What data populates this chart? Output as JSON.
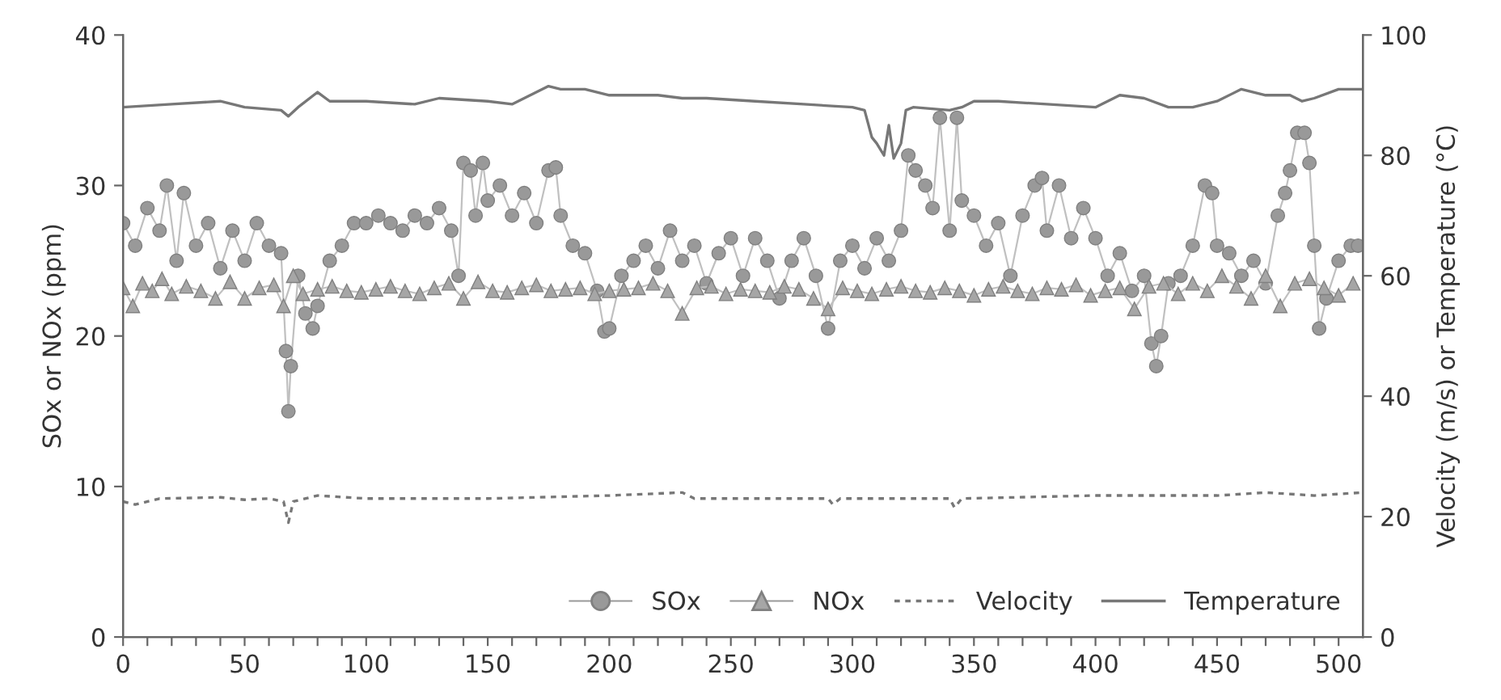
{
  "chart_data": {
    "type": "line",
    "xlim": [
      0,
      510
    ],
    "xticks": [
      0,
      {
        "value": 10,
        "label": null
      },
      {
        "value": 20,
        "label": null
      },
      {
        "value": 30,
        "label": null
      },
      {
        "value": 40,
        "label": null
      },
      50,
      {
        "value": 60,
        "label": null
      },
      {
        "value": 70,
        "label": null
      },
      {
        "value": 80,
        "label": null
      },
      {
        "value": 90,
        "label": null
      },
      100,
      {
        "value": 110,
        "label": null
      },
      {
        "value": 120,
        "label": null
      },
      {
        "value": 130,
        "label": null
      },
      {
        "value": 140,
        "label": null
      },
      150,
      {
        "value": 160,
        "label": null
      },
      {
        "value": 170,
        "label": null
      },
      {
        "value": 180,
        "label": null
      },
      {
        "value": 190,
        "label": null
      },
      200,
      {
        "value": 210,
        "label": null
      },
      {
        "value": 220,
        "label": null
      },
      {
        "value": 230,
        "label": null
      },
      {
        "value": 240,
        "label": null
      },
      250,
      {
        "value": 260,
        "label": null
      },
      {
        "value": 270,
        "label": null
      },
      {
        "value": 280,
        "label": null
      },
      {
        "value": 290,
        "label": null
      },
      300,
      {
        "value": 310,
        "label": null
      },
      {
        "value": 320,
        "label": null
      },
      {
        "value": 330,
        "label": null
      },
      {
        "value": 340,
        "label": null
      },
      350,
      {
        "value": 360,
        "label": null
      },
      {
        "value": 370,
        "label": null
      },
      {
        "value": 380,
        "label": null
      },
      {
        "value": 390,
        "label": null
      },
      400,
      {
        "value": 410,
        "label": null
      },
      {
        "value": 420,
        "label": null
      },
      {
        "value": 430,
        "label": null
      },
      {
        "value": 440,
        "label": null
      },
      450,
      {
        "value": 460,
        "label": null
      },
      {
        "value": 470,
        "label": null
      },
      {
        "value": 480,
        "label": null
      },
      {
        "value": 490,
        "label": null
      },
      500
    ],
    "ylim": [
      0,
      40
    ],
    "yticks": [
      0,
      10,
      20,
      30,
      40
    ],
    "y2lim": [
      0,
      100
    ],
    "y2ticks": [
      0,
      20,
      40,
      60,
      80,
      100
    ],
    "ylabel": "SOx or NOx (ppm)",
    "y2label": "Velocity (m/s) or Temperature (°C)",
    "legend": "bottom right",
    "grid": false,
    "series": [
      {
        "name": "SOx",
        "marker": "circle",
        "line_style": "solid",
        "color": "#999999",
        "x": [
          0,
          5,
          10,
          15,
          18,
          22,
          25,
          30,
          35,
          40,
          45,
          50,
          55,
          60,
          65,
          67,
          68,
          69,
          72,
          75,
          78,
          80,
          85,
          90,
          95,
          100,
          105,
          110,
          115,
          120,
          125,
          130,
          135,
          138,
          140,
          143,
          145,
          148,
          150,
          155,
          160,
          165,
          170,
          175,
          178,
          180,
          185,
          190,
          195,
          198,
          200,
          205,
          210,
          215,
          220,
          225,
          230,
          235,
          240,
          245,
          250,
          255,
          260,
          265,
          270,
          275,
          280,
          285,
          290,
          295,
          300,
          305,
          310,
          315,
          320,
          323,
          326,
          330,
          333,
          336,
          340,
          343,
          345,
          350,
          355,
          360,
          365,
          370,
          375,
          378,
          380,
          385,
          390,
          395,
          400,
          405,
          410,
          415,
          420,
          423,
          425,
          427,
          430,
          435,
          440,
          445,
          448,
          450,
          455,
          460,
          465,
          470,
          475,
          478,
          480,
          483,
          486,
          488,
          490,
          492,
          495,
          500,
          505,
          508
        ],
        "values": [
          27.5,
          26,
          28.5,
          27,
          30,
          25,
          29.5,
          26,
          27.5,
          24.5,
          27,
          25,
          27.5,
          26,
          25.5,
          19,
          15,
          18,
          24,
          21.5,
          20.5,
          22,
          25,
          26,
          27.5,
          27.5,
          28,
          27.5,
          27,
          28,
          27.5,
          28.5,
          27,
          24,
          31.5,
          31,
          28,
          31.5,
          29,
          30,
          28,
          29.5,
          27.5,
          31,
          31.2,
          28,
          26,
          25.5,
          23,
          20.3,
          20.5,
          24,
          25,
          26,
          24.5,
          27,
          25,
          26,
          23.5,
          25.5,
          26.5,
          24,
          26.5,
          25,
          22.5,
          25,
          26.5,
          24,
          20.5,
          25,
          26,
          24.5,
          26.5,
          25,
          27,
          32,
          31,
          30,
          28.5,
          34.5,
          27,
          34.5,
          29,
          28,
          26,
          27.5,
          24,
          28,
          30,
          30.5,
          27,
          30,
          26.5,
          28.5,
          26.5,
          24,
          25.5,
          23,
          24,
          19.5,
          18,
          20,
          23.5,
          24,
          26,
          30,
          29.5,
          26,
          25.5,
          24,
          25,
          23.5,
          28,
          29.5,
          31,
          33.5,
          33.5,
          31.5,
          26,
          20.5,
          22.5,
          25,
          26,
          26
        ]
      },
      {
        "name": "NOx",
        "marker": "triangle",
        "line_style": "solid",
        "color": "#a6a6a6",
        "x": [
          0,
          4,
          8,
          12,
          16,
          20,
          26,
          32,
          38,
          44,
          50,
          56,
          62,
          66,
          70,
          74,
          80,
          86,
          92,
          98,
          104,
          110,
          116,
          122,
          128,
          134,
          140,
          146,
          152,
          158,
          164,
          170,
          176,
          182,
          188,
          194,
          200,
          206,
          212,
          218,
          224,
          230,
          236,
          242,
          248,
          254,
          260,
          266,
          272,
          278,
          284,
          290,
          296,
          302,
          308,
          314,
          320,
          326,
          332,
          338,
          344,
          350,
          356,
          362,
          368,
          374,
          380,
          386,
          392,
          398,
          404,
          410,
          416,
          422,
          428,
          434,
          440,
          446,
          452,
          458,
          464,
          470,
          476,
          482,
          488,
          494,
          500,
          506
        ],
        "values": [
          23.2,
          22,
          23.5,
          23,
          23.8,
          22.8,
          23.3,
          23,
          22.5,
          23.6,
          22.5,
          23.2,
          23.4,
          22,
          24,
          22.8,
          23.1,
          23.3,
          23,
          22.9,
          23.1,
          23.3,
          23,
          22.8,
          23.2,
          23.5,
          22.5,
          23.6,
          23,
          22.9,
          23.2,
          23.4,
          23,
          23.1,
          23.2,
          22.8,
          23,
          23.1,
          23.2,
          23.5,
          23,
          21.5,
          23.2,
          23.3,
          22.8,
          23.1,
          23,
          22.9,
          23.3,
          23.1,
          22.5,
          21.8,
          23.2,
          23,
          22.8,
          23.1,
          23.3,
          23,
          22.9,
          23.2,
          23,
          22.7,
          23.1,
          23.3,
          23,
          22.8,
          23.2,
          23.1,
          23.4,
          22.7,
          23,
          23.2,
          21.8,
          23.3,
          23.5,
          22.8,
          23.5,
          23,
          24,
          23.3,
          22.5,
          24,
          22,
          23.5,
          23.8,
          23.2,
          22.7,
          23.5
        ]
      },
      {
        "name": "Velocity",
        "axis": "y2",
        "marker": "none",
        "line_style": "dashed",
        "color": "#777777",
        "x": [
          0,
          5,
          15,
          40,
          50,
          60,
          66,
          68,
          70,
          80,
          100,
          150,
          200,
          230,
          235,
          290,
          292,
          295,
          340,
          342,
          345,
          400,
          450,
          470,
          490,
          510
        ],
        "values": [
          22.5,
          22,
          23,
          23.2,
          22.8,
          23,
          22.5,
          19,
          22.5,
          23.5,
          23,
          23,
          23.5,
          24,
          23,
          23,
          22,
          23,
          23,
          21.5,
          23,
          23.5,
          23.5,
          24,
          23.5,
          24
        ]
      },
      {
        "name": "Temperature",
        "axis": "y2",
        "marker": "none",
        "line_style": "solid",
        "color": "#777777",
        "x": [
          0,
          20,
          40,
          50,
          65,
          68,
          72,
          80,
          85,
          100,
          120,
          130,
          150,
          160,
          170,
          175,
          180,
          190,
          200,
          220,
          230,
          240,
          260,
          280,
          300,
          305,
          308,
          310,
          313,
          315,
          317,
          320,
          322,
          325,
          340,
          345,
          350,
          360,
          380,
          400,
          410,
          420,
          430,
          440,
          450,
          460,
          470,
          480,
          485,
          490,
          500,
          510
        ],
        "values": [
          88,
          88.5,
          89,
          88,
          87.5,
          86.5,
          88,
          90.5,
          89,
          89,
          88.5,
          89.5,
          89,
          88.5,
          90.5,
          91.5,
          91,
          91,
          90,
          90,
          89.5,
          89.5,
          89,
          88.5,
          88,
          87.5,
          83,
          82,
          80,
          85,
          79.5,
          82,
          87.5,
          88,
          87.5,
          88,
          89,
          89,
          88.5,
          88,
          90,
          89.5,
          88,
          88,
          89,
          91,
          90,
          90,
          89,
          89.5,
          91,
          91
        ]
      }
    ]
  }
}
